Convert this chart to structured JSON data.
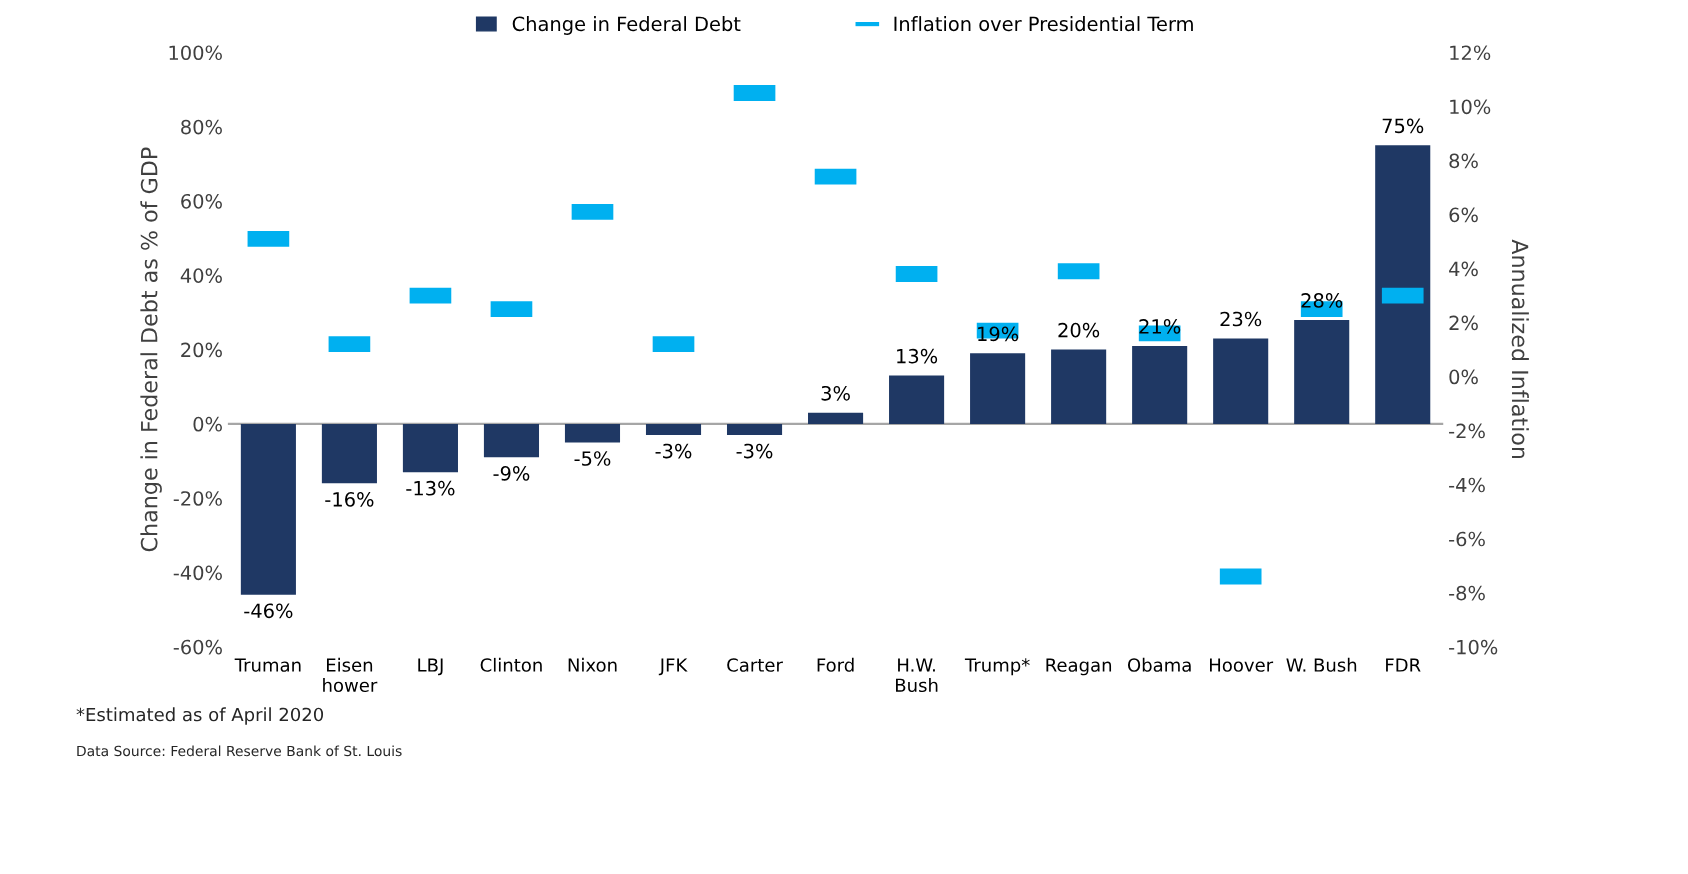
{
  "chart_data": {
    "type": "bar",
    "categories": [
      "Truman",
      "Eisen\nhower",
      "LBJ",
      "Clinton",
      "Nixon",
      "JFK",
      "Carter",
      "Ford",
      "H.W.\nBush",
      "Trump*",
      "Reagan",
      "Obama",
      "Hoover",
      "W. Bush",
      "FDR"
    ],
    "series": [
      {
        "name": "Change in Federal Debt",
        "type": "bar",
        "color": "#1f3864",
        "values": [
          -46,
          -16,
          -13,
          -9,
          -5,
          -3,
          -3,
          3,
          13,
          19,
          20,
          21,
          23,
          28,
          75
        ],
        "value_labels": [
          "-46%",
          "-16%",
          "-13%",
          "-9%",
          "-5%",
          "-3%",
          "-3%",
          "3%",
          "13%",
          "19%",
          "20%",
          "21%",
          "23%",
          "28%",
          "75%"
        ]
      },
      {
        "name": "Inflation over Presidential Term",
        "type": "scatter",
        "axis": "y2",
        "color": "#00b0f0",
        "values": [
          5.1,
          1.2,
          3.0,
          2.5,
          6.1,
          1.2,
          10.5,
          7.4,
          3.8,
          1.7,
          3.9,
          1.6,
          -7.4,
          2.5,
          3.0
        ]
      }
    ],
    "ylabel": "Change in Federal Debt as % of GDP",
    "y2label": "Annualized Inflation",
    "ylim": [
      -60,
      100
    ],
    "yticks": [
      {
        "value": -60,
        "label": "-60%"
      },
      {
        "value": -40,
        "label": "-40%"
      },
      {
        "value": -20,
        "label": "-20%"
      },
      {
        "value": 0,
        "label": "0%"
      },
      {
        "value": 20,
        "label": "20%"
      },
      {
        "value": 40,
        "label": "40%"
      },
      {
        "value": 60,
        "label": "60%"
      },
      {
        "value": 80,
        "label": "80%"
      },
      {
        "value": 100,
        "label": "100%"
      }
    ],
    "y2lim": [
      -10,
      12
    ],
    "y2ticks": [
      {
        "value": -10,
        "label": "-10%"
      },
      {
        "value": -8,
        "label": "-8%"
      },
      {
        "value": -6,
        "label": "-6%"
      },
      {
        "value": -4,
        "label": "-4%"
      },
      {
        "value": -2,
        "label": "-2%"
      },
      {
        "value": 0,
        "label": "0%"
      },
      {
        "value": 2,
        "label": "2%"
      },
      {
        "value": 4,
        "label": "4%"
      },
      {
        "value": 6,
        "label": "6%"
      },
      {
        "value": 8,
        "label": "8%"
      },
      {
        "value": 10,
        "label": "10%"
      },
      {
        "value": 12,
        "label": "12%"
      }
    ],
    "legend": "top",
    "annotations": [
      "*Estimated as of April 2020",
      "Data Source: Federal Reserve Bank of St. Louis"
    ]
  }
}
